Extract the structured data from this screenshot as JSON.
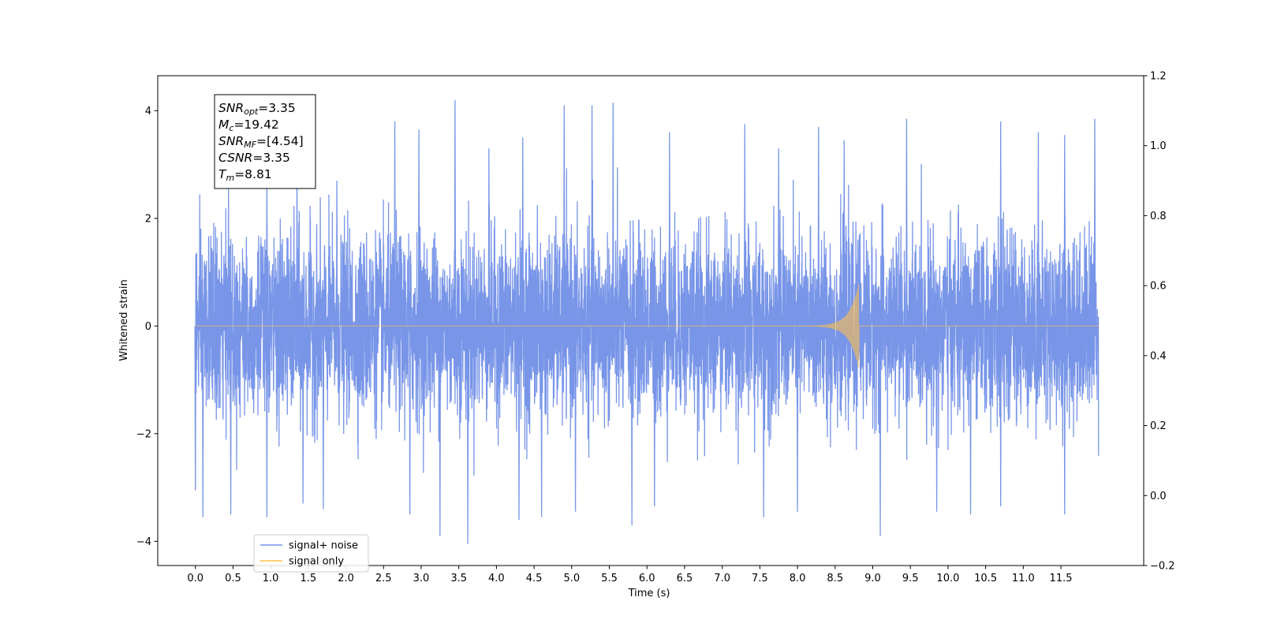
{
  "chart_data": {
    "type": "line",
    "xlabel": "Time (s)",
    "ylabel": "Whitened strain",
    "xlim": [
      -0.5,
      12.6
    ],
    "ylim": [
      -4.45,
      4.65
    ],
    "y2lim": [
      -0.2,
      1.2
    ],
    "x_ticks": [
      0.0,
      0.5,
      1.0,
      1.5,
      2.0,
      2.5,
      3.0,
      3.5,
      4.0,
      4.5,
      5.0,
      5.5,
      6.0,
      6.5,
      7.0,
      7.5,
      8.0,
      8.5,
      9.0,
      9.5,
      10.0,
      10.5,
      11.0,
      11.5
    ],
    "x_tick_labels": [
      "0.0",
      "0.5",
      "1.0",
      "1.5",
      "2.0",
      "2.5",
      "3.0",
      "3.5",
      "4.0",
      "4.5",
      "5.0",
      "5.5",
      "6.0",
      "6.5",
      "7.0",
      "7.5",
      "8.0",
      "8.5",
      "9.0",
      "9.5",
      "10.0",
      "10.5",
      "11.0",
      "11.5"
    ],
    "y_ticks": [
      -4,
      -2,
      0,
      2,
      4
    ],
    "y_tick_labels": [
      "−4",
      "−2",
      "0",
      "2",
      "4"
    ],
    "y2_ticks": [
      -0.2,
      0.0,
      0.2,
      0.4,
      0.6,
      0.8,
      1.0,
      1.2
    ],
    "y2_tick_labels": [
      "−0.2",
      "0.0",
      "0.2",
      "0.4",
      "0.6",
      "0.8",
      "1.0",
      "1.2"
    ],
    "grid": false,
    "legend_position": "lower-left",
    "series": [
      {
        "name": "signal+ noise",
        "color": "#7895e8",
        "x_range": [
          0.0,
          12.0
        ],
        "noise_std": 1.0,
        "peaks_max": [
          [
            0.44,
            2.55
          ],
          [
            0.95,
            2.85
          ],
          [
            1.35,
            3.0
          ],
          [
            1.88,
            2.7
          ],
          [
            2.65,
            3.8
          ],
          [
            2.97,
            3.65
          ],
          [
            3.45,
            4.2
          ],
          [
            3.9,
            3.3
          ],
          [
            4.35,
            3.5
          ],
          [
            4.9,
            4.1
          ],
          [
            5.27,
            4.1
          ],
          [
            5.55,
            4.15
          ],
          [
            6.3,
            3.6
          ],
          [
            7.3,
            3.75
          ],
          [
            7.75,
            3.3
          ],
          [
            8.28,
            3.7
          ],
          [
            8.62,
            3.45
          ],
          [
            9.45,
            3.85
          ],
          [
            10.7,
            3.8
          ],
          [
            11.2,
            3.6
          ],
          [
            11.55,
            3.55
          ],
          [
            11.95,
            3.85
          ]
        ],
        "peaks_min": [
          [
            0.0,
            -3.05
          ],
          [
            0.1,
            -3.55
          ],
          [
            0.47,
            -3.5
          ],
          [
            0.95,
            -3.55
          ],
          [
            1.43,
            -3.3
          ],
          [
            1.7,
            -3.4
          ],
          [
            2.85,
            -3.5
          ],
          [
            3.25,
            -3.9
          ],
          [
            3.62,
            -4.05
          ],
          [
            4.3,
            -3.6
          ],
          [
            4.6,
            -3.55
          ],
          [
            5.05,
            -3.45
          ],
          [
            5.8,
            -3.7
          ],
          [
            6.1,
            -3.35
          ],
          [
            7.55,
            -3.55
          ],
          [
            8.0,
            -3.45
          ],
          [
            9.1,
            -3.9
          ],
          [
            9.85,
            -3.45
          ],
          [
            10.3,
            -3.5
          ],
          [
            10.7,
            -3.35
          ],
          [
            11.55,
            -3.5
          ]
        ]
      },
      {
        "name": "signal only",
        "color": "#ffbf4c",
        "x_range": [
          0.0,
          12.0
        ],
        "chirp_start": 7.0,
        "merger_time": 8.81,
        "peak_amplitude": 0.78
      }
    ],
    "annotation": [
      {
        "main": "SNR",
        "sub": "opt",
        "value": "=3.35"
      },
      {
        "main": "M",
        "sub": "c",
        "value": "=19.42"
      },
      {
        "main": "SNR",
        "sub": "MF",
        "value": "=[4.54]"
      },
      {
        "main": "CSNR",
        "sub": "",
        "value": "=3.35"
      },
      {
        "main": "T",
        "sub": "m",
        "value": "=8.81"
      }
    ]
  }
}
